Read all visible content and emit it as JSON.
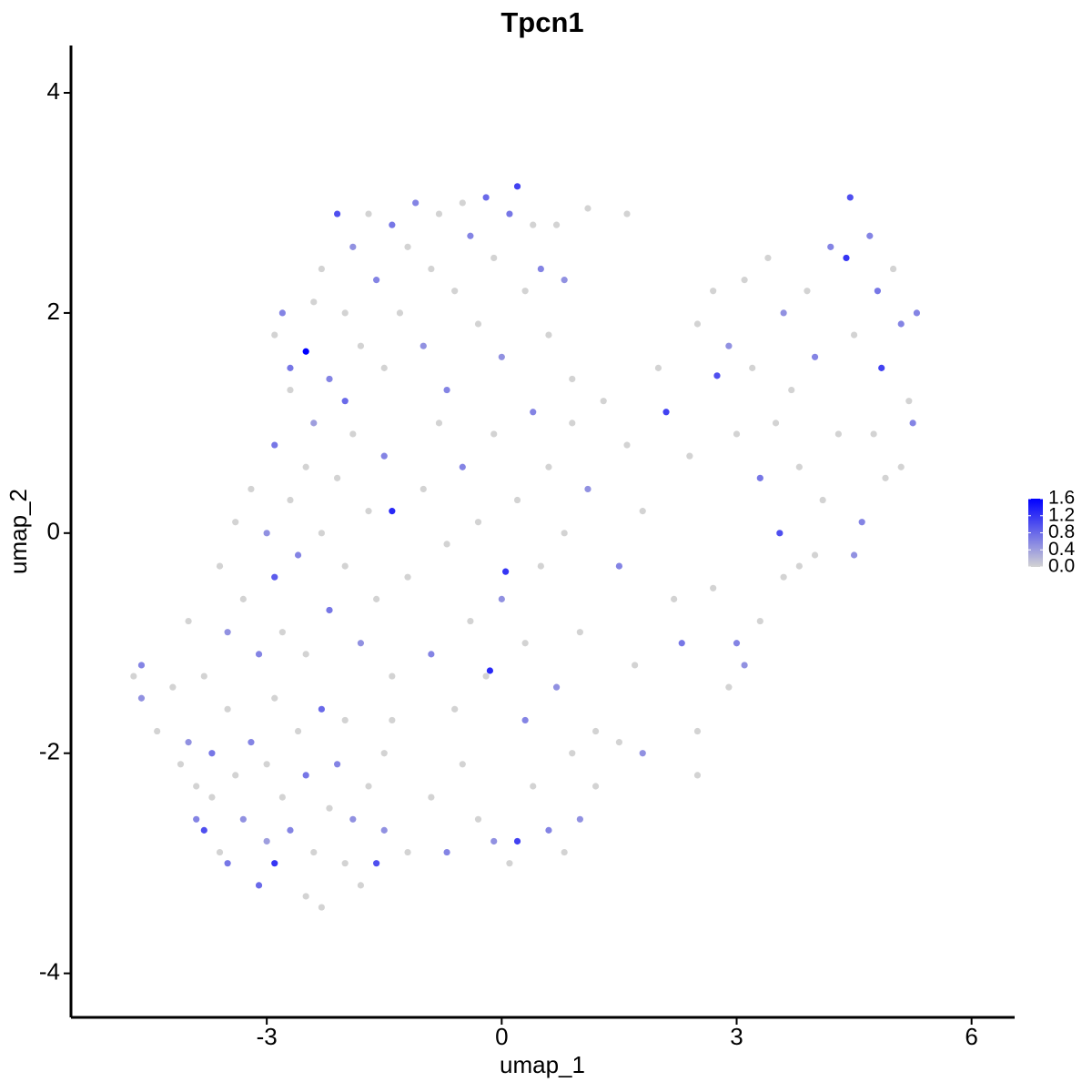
{
  "chart_data": {
    "type": "scatter",
    "title": "Tpcn1",
    "xlabel": "umap_1",
    "ylabel": "umap_2",
    "xlim": [
      -5.5,
      6.55
    ],
    "ylim": [
      -4.4,
      4.43
    ],
    "xticks": [
      -3,
      0,
      3,
      6
    ],
    "yticks": [
      -4,
      -2,
      0,
      2,
      4
    ],
    "colorbar": {
      "lim": [
        0,
        1.6
      ],
      "ticks": [
        {
          "value": 0,
          "label": "0.0"
        },
        0.4,
        0.8,
        1.2,
        1.6
      ],
      "low_color": "#d3d3d3",
      "high_color": "#0000ff"
    },
    "x": [
      -4.7,
      -4.6,
      -4.6,
      -4.4,
      -4.2,
      -4.1,
      -4.0,
      -3.9,
      -3.9,
      -3.8,
      -3.7,
      -3.7,
      -3.6,
      -3.5,
      -3.5,
      -3.4,
      -3.3,
      -3.2,
      -3.1,
      -3.0,
      -3.0,
      -2.9,
      -2.9,
      -2.8,
      -2.7,
      -2.6,
      -2.5,
      -2.5,
      -2.4,
      -2.3,
      -2.3,
      -2.2,
      -2.1,
      -2.0,
      -2.0,
      -1.9,
      -1.8,
      -1.7,
      -1.6,
      -1.5,
      -1.5,
      -1.4,
      -4.0,
      -3.8,
      -3.6,
      -3.5,
      -3.4,
      -3.3,
      -3.2,
      -3.1,
      -3.0,
      -2.9,
      -2.9,
      -2.8,
      -2.7,
      -2.7,
      -2.6,
      -2.5,
      -2.5,
      -2.4,
      -2.3,
      -2.2,
      -2.1,
      -2.0,
      -2.0,
      -1.9,
      -1.8,
      -1.7,
      -1.6,
      -1.5,
      -1.4,
      -1.4,
      -2.9,
      -2.8,
      -2.7,
      -2.5,
      -2.4,
      -2.3,
      -2.2,
      -2.1,
      -2.0,
      -1.9,
      -1.8,
      -1.7,
      -1.6,
      -1.5,
      -1.4,
      -1.3,
      -1.2,
      -1.1,
      -1.0,
      -0.9,
      -0.8,
      -0.7,
      -0.6,
      -0.5,
      -0.4,
      -0.3,
      -0.2,
      -0.1,
      0.0,
      0.1,
      0.2,
      0.3,
      0.4,
      0.5,
      0.6,
      0.7,
      0.8,
      0.9,
      1.1,
      1.6,
      -1.2,
      -1.0,
      -0.9,
      -0.8,
      -0.7,
      -0.6,
      -0.5,
      -0.4,
      -0.3,
      -0.2,
      -0.1,
      0.0,
      0.05,
      0.2,
      0.3,
      0.4,
      0.5,
      0.6,
      0.7,
      0.8,
      0.9,
      1.0,
      1.1,
      1.2,
      1.3,
      1.5,
      1.6,
      1.7,
      1.8,
      2.0,
      2.1,
      2.2,
      2.4,
      -1.2,
      -0.9,
      -0.7,
      -0.5,
      -0.3,
      -0.1,
      0.1,
      0.2,
      0.4,
      0.6,
      0.8,
      0.9,
      1.0,
      -0.15,
      0.3,
      1.2,
      1.5,
      1.8,
      2.5,
      2.7,
      2.75,
      2.9,
      3.0,
      3.1,
      3.2,
      3.3,
      3.4,
      3.5,
      3.55,
      3.6,
      3.7,
      3.8,
      3.9,
      4.0,
      4.1,
      4.2,
      4.3,
      4.4,
      4.45,
      4.5,
      4.6,
      4.7,
      4.75,
      4.8,
      4.85,
      4.9,
      5.0,
      5.1,
      5.2,
      5.25,
      5.3,
      5.1,
      4.5,
      2.7,
      2.9,
      3.1,
      3.3,
      3.0,
      2.5,
      2.3,
      3.6,
      3.8,
      4.0,
      2.5
    ],
    "y": [
      -1.3,
      -1.2,
      -1.5,
      -1.8,
      -1.4,
      -2.1,
      -1.9,
      -2.3,
      -2.6,
      -2.7,
      -2.0,
      -2.4,
      -2.9,
      -3.0,
      -1.6,
      -2.2,
      -2.6,
      -1.9,
      -3.2,
      -2.1,
      -2.8,
      -3.0,
      -1.5,
      -2.4,
      -2.7,
      -1.8,
      -3.3,
      -2.2,
      -2.9,
      -1.6,
      -3.4,
      -2.5,
      -2.1,
      -3.0,
      -1.7,
      -2.6,
      -3.2,
      -2.3,
      -3.0,
      -2.0,
      -2.7,
      -1.7,
      -0.8,
      -1.3,
      -0.3,
      -0.9,
      0.1,
      -0.6,
      0.4,
      -1.1,
      0.0,
      -0.4,
      0.8,
      -0.9,
      1.3,
      0.3,
      -0.2,
      0.6,
      -1.1,
      1.0,
      0.0,
      -0.7,
      0.5,
      1.2,
      -0.3,
      0.9,
      -1.0,
      0.2,
      -0.6,
      0.7,
      -1.3,
      0.2,
      1.8,
      2.0,
      1.5,
      1.65,
      2.1,
      2.4,
      1.4,
      2.9,
      2.0,
      2.6,
      1.7,
      2.9,
      2.3,
      1.5,
      2.8,
      2.0,
      2.6,
      3.0,
      1.7,
      2.4,
      2.9,
      1.3,
      2.2,
      3.0,
      2.7,
      1.9,
      3.05,
      2.5,
      1.6,
      2.9,
      3.15,
      2.2,
      2.8,
      2.4,
      1.8,
      2.8,
      2.3,
      1.4,
      2.95,
      2.9,
      -0.4,
      0.4,
      -1.1,
      1.0,
      -0.1,
      -1.6,
      0.6,
      -0.8,
      0.1,
      -1.3,
      0.9,
      -0.6,
      -0.35,
      0.3,
      -1.0,
      1.1,
      -0.3,
      0.6,
      -1.4,
      0.0,
      1.0,
      -0.9,
      0.4,
      -1.8,
      1.2,
      -0.3,
      0.8,
      -1.2,
      0.2,
      1.5,
      1.1,
      -0.6,
      0.7,
      -2.9,
      -2.4,
      -2.9,
      -2.1,
      -2.6,
      -2.8,
      -3.0,
      -2.8,
      -2.3,
      -2.7,
      -2.9,
      -2.0,
      -2.6,
      -1.25,
      -1.7,
      -2.3,
      -1.9,
      -2.0,
      1.9,
      2.2,
      1.43,
      1.7,
      0.9,
      2.3,
      1.5,
      0.5,
      2.5,
      1.0,
      0.0,
      2.0,
      1.3,
      0.6,
      2.2,
      1.6,
      0.3,
      2.6,
      0.9,
      2.5,
      3.05,
      1.8,
      0.1,
      2.7,
      0.9,
      2.2,
      1.5,
      0.5,
      2.4,
      1.9,
      1.2,
      1.0,
      2.0,
      0.6,
      -0.2,
      -0.5,
      -1.4,
      -1.2,
      -0.8,
      -1.0,
      -1.8,
      -1.0,
      -0.4,
      -0.3,
      -0.2,
      -2.2
    ],
    "values": [
      0,
      0.6,
      0.5,
      0,
      0,
      0,
      0.5,
      0,
      0.6,
      1.0,
      0.7,
      0,
      0,
      0.7,
      0,
      0,
      0.5,
      0.6,
      0.8,
      0,
      0.4,
      1.2,
      0,
      0,
      0.6,
      0,
      0,
      0.7,
      0,
      0.8,
      0,
      0,
      0.6,
      0,
      0,
      0.5,
      0,
      0,
      1.0,
      0,
      0.5,
      0,
      0,
      0,
      0,
      0.5,
      0,
      0,
      0,
      0.6,
      0.5,
      0.9,
      0.7,
      0,
      0,
      0,
      0.6,
      0,
      0,
      0.4,
      0,
      0.7,
      0,
      0.8,
      0,
      0,
      0.5,
      0,
      0,
      0.6,
      0,
      1.3,
      0,
      0.6,
      0.7,
      1.6,
      0,
      0,
      0.6,
      1.0,
      0,
      0.5,
      0,
      0,
      0.6,
      0,
      0.7,
      0,
      0,
      0.6,
      0.5,
      0,
      0,
      0.6,
      0,
      0,
      0.6,
      0,
      0.8,
      0,
      0.5,
      0.7,
      1.1,
      0,
      0,
      0.6,
      0,
      0,
      0.5,
      0,
      0,
      0,
      0,
      0,
      0.6,
      0,
      0,
      0,
      0.6,
      0,
      0,
      0,
      0,
      0.5,
      1.2,
      0,
      0,
      0.6,
      0,
      0,
      0.5,
      0,
      0,
      0,
      0.5,
      0,
      0,
      0.6,
      0,
      0,
      0,
      0,
      1.1,
      0,
      0,
      0,
      0,
      0.6,
      0,
      0,
      0.5,
      0,
      1.1,
      0,
      0.6,
      0,
      0,
      0.5,
      1.3,
      0.6,
      0,
      0,
      0.5,
      0,
      0,
      1.0,
      0.5,
      0,
      0,
      0,
      0.7,
      0,
      0,
      1.0,
      0.5,
      0,
      0,
      0,
      0.6,
      0,
      0.6,
      0,
      1.2,
      1.0,
      0,
      0.6,
      0.6,
      0,
      0.7,
      1.1,
      0,
      0,
      0.6,
      0,
      0.6,
      0.6,
      0,
      0.5,
      0,
      0,
      0.5,
      0,
      0.6,
      0,
      0.7,
      0,
      0,
      0,
      0
    ]
  }
}
